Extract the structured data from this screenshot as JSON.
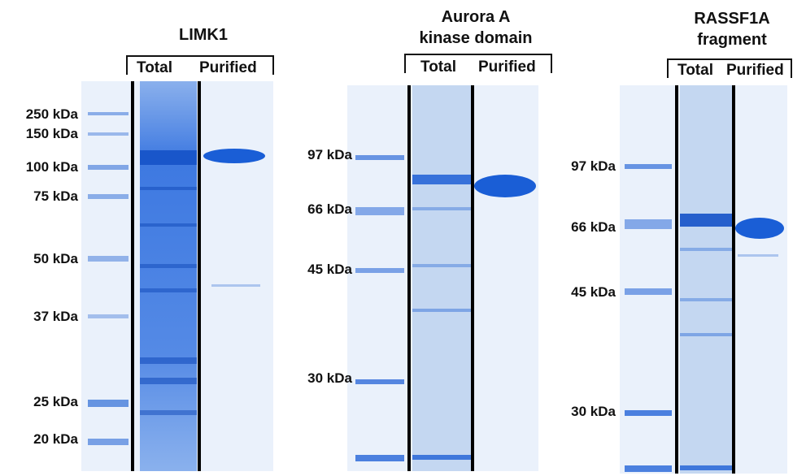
{
  "panels": [
    {
      "title_lines": [
        "LIMK1"
      ],
      "lane_labels": [
        "Total",
        "Purified"
      ],
      "markers": [
        "250 kDa",
        "150 kDa",
        "100 kDa",
        "75 kDa",
        "50 kDa",
        "37 kDa",
        "25 kDa",
        "20 kDa"
      ]
    },
    {
      "title_lines": [
        "Aurora A",
        "kinase domain"
      ],
      "lane_labels": [
        "Total",
        "Purified"
      ],
      "markers": [
        "97 kDa",
        "66 kDa",
        "45 kDa",
        "30 kDa"
      ]
    },
    {
      "title_lines": [
        "RASSF1A",
        "fragment"
      ],
      "lane_labels": [
        "Total",
        "Purified"
      ],
      "markers": [
        "97 kDa",
        "66 kDa",
        "45 kDa",
        "30 kDa"
      ]
    }
  ],
  "colors": {
    "gel_background": "#eaf1fb",
    "stain": "#1f63d6",
    "separator": "#000000"
  }
}
